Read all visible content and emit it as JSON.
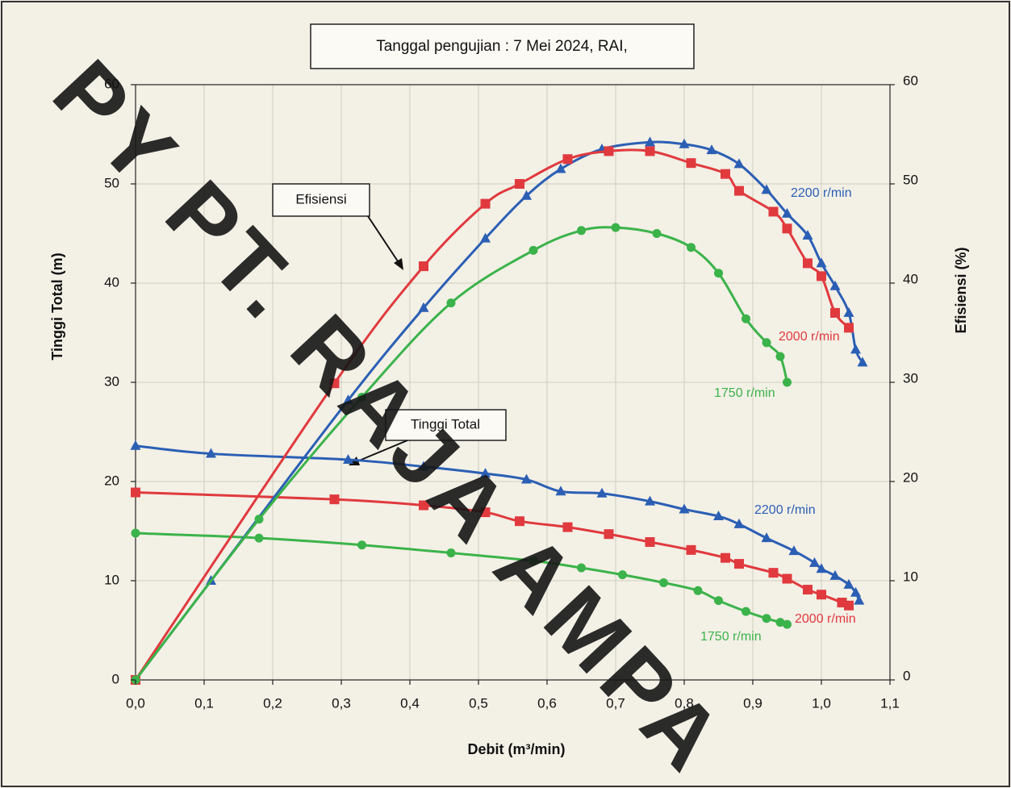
{
  "chart_data": {
    "type": "line",
    "title": "Tanggal pengujian : 7 Mei 2024, RAI,",
    "xlabel": "Debit (m³/min)",
    "ylabel": "Tinggi Total (m)",
    "y2label": "Efisiensi (%)",
    "xlim": [
      0,
      1.1
    ],
    "xticks": [
      {
        "value": 0,
        "label": "0,0"
      },
      {
        "value": 0.1,
        "label": "0,1"
      },
      {
        "value": 0.2,
        "label": "0,2"
      },
      {
        "value": 0.3,
        "label": "0,3"
      },
      {
        "value": 0.4,
        "label": "0,4"
      },
      {
        "value": 0.5,
        "label": "0,5"
      },
      {
        "value": 0.6,
        "label": "0,6"
      },
      {
        "value": 0.7,
        "label": "0,7"
      },
      {
        "value": 0.8,
        "label": "0,8"
      },
      {
        "value": 0.9,
        "label": "0,9"
      },
      {
        "value": 1.0,
        "label": "1,0"
      },
      {
        "value": 1.1,
        "label": "1,1"
      }
    ],
    "ylim": [
      0,
      60
    ],
    "yticks": [
      0,
      10,
      20,
      30,
      40,
      50,
      60
    ],
    "y2lim": [
      0,
      60
    ],
    "y2ticks": [
      0,
      10,
      20,
      30,
      40,
      50,
      60
    ],
    "grid": true,
    "annotations": [
      "Efisiensi",
      "Tinggi Total"
    ],
    "watermark": "PY PT. RAJA AMPA",
    "series": [
      {
        "name": "2200 r/min",
        "color": "#2b5fb4",
        "marker": "triangle",
        "x": [
          0.0,
          0.11,
          0.31,
          0.42,
          0.51,
          0.57,
          0.62,
          0.68,
          0.75,
          0.8,
          0.85,
          0.88,
          0.92,
          0.96,
          0.99,
          1.0,
          1.02,
          1.04,
          1.05,
          1.055
        ],
        "values": [
          23.6,
          22.8,
          22.2,
          21.5,
          20.8,
          20.2,
          19.0,
          18.8,
          18.0,
          17.2,
          16.5,
          15.7,
          14.3,
          13.0,
          11.8,
          11.2,
          10.5,
          9.6,
          8.8,
          8.0
        ]
      },
      {
        "name": "2000 r/min",
        "color": "#e03a3e",
        "marker": "square",
        "x": [
          0.0,
          0.29,
          0.42,
          0.51,
          0.56,
          0.63,
          0.69,
          0.75,
          0.81,
          0.86,
          0.88,
          0.93,
          0.95,
          0.98,
          1.0,
          1.03,
          1.04
        ],
        "values": [
          18.9,
          18.2,
          17.6,
          16.9,
          16.0,
          15.4,
          14.7,
          13.9,
          13.1,
          12.3,
          11.7,
          10.8,
          10.2,
          9.1,
          8.6,
          7.8,
          7.5
        ]
      },
      {
        "name": "1750 r/min",
        "color": "#3bb34a",
        "marker": "circle",
        "x": [
          0.0,
          0.18,
          0.33,
          0.46,
          0.58,
          0.65,
          0.71,
          0.77,
          0.82,
          0.85,
          0.89,
          0.92,
          0.94,
          0.95
        ],
        "values": [
          14.8,
          14.3,
          13.6,
          12.8,
          12.0,
          11.3,
          10.6,
          9.8,
          9.0,
          8.0,
          6.9,
          6.2,
          5.8,
          5.6
        ]
      },
      {
        "name": "2200 r/min",
        "color": "#2b5fb4",
        "marker": "triangle",
        "axis": "y2",
        "x": [
          0.0,
          0.11,
          0.31,
          0.42,
          0.51,
          0.57,
          0.62,
          0.68,
          0.75,
          0.8,
          0.84,
          0.88,
          0.92,
          0.95,
          0.98,
          1.0,
          1.02,
          1.04,
          1.05,
          1.06
        ],
        "values": [
          0,
          10,
          28.2,
          37.5,
          44.5,
          48.8,
          51.5,
          53.5,
          54.2,
          54.0,
          53.4,
          52.0,
          49.4,
          47.0,
          44.8,
          42.0,
          39.7,
          37.0,
          33.3,
          32.0
        ]
      },
      {
        "name": "2000 r/min",
        "color": "#e03a3e",
        "marker": "square",
        "axis": "y2",
        "x": [
          0.0,
          0.29,
          0.42,
          0.51,
          0.56,
          0.63,
          0.69,
          0.75,
          0.81,
          0.86,
          0.88,
          0.93,
          0.95,
          0.98,
          1.0,
          1.02,
          1.04
        ],
        "values": [
          0,
          29.9,
          41.7,
          48.0,
          50.0,
          52.5,
          53.3,
          53.3,
          52.1,
          51.0,
          49.3,
          47.2,
          45.5,
          42.0,
          40.7,
          37.0,
          35.5
        ]
      },
      {
        "name": "1750 r/min",
        "color": "#3bb34a",
        "marker": "circle",
        "axis": "y2",
        "x": [
          0.0,
          0.18,
          0.33,
          0.46,
          0.58,
          0.65,
          0.7,
          0.76,
          0.81,
          0.85,
          0.89,
          0.92,
          0.94,
          0.95
        ],
        "values": [
          0,
          16.2,
          28.5,
          38.0,
          43.3,
          45.3,
          45.6,
          45.0,
          43.6,
          41.0,
          36.4,
          34.0,
          32.6,
          30.0
        ]
      }
    ]
  }
}
